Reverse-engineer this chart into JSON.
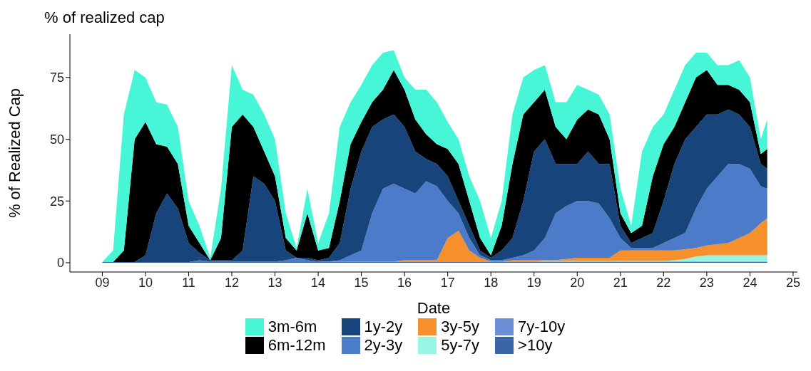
{
  "chart_data": {
    "type": "area",
    "stacked": true,
    "title": "% of realized cap",
    "xlabel": "Date",
    "ylabel": "% of Realized Cap",
    "legend": "bottom",
    "grid": false,
    "x": [
      2009,
      2009.25,
      2009.5,
      2009.75,
      2010,
      2010.25,
      2010.5,
      2010.75,
      2011,
      2011.25,
      2011.5,
      2011.75,
      2012,
      2012.25,
      2012.5,
      2012.75,
      2013,
      2013.25,
      2013.5,
      2013.75,
      2014,
      2014.25,
      2014.5,
      2014.75,
      2015,
      2015.25,
      2015.5,
      2015.75,
      2016,
      2016.25,
      2016.5,
      2016.75,
      2017,
      2017.25,
      2017.5,
      2017.75,
      2018,
      2018.25,
      2018.5,
      2018.75,
      2019,
      2019.25,
      2019.5,
      2019.75,
      2020,
      2020.25,
      2020.5,
      2020.75,
      2021,
      2021.25,
      2021.5,
      2021.75,
      2022,
      2022.25,
      2022.5,
      2022.75,
      2023,
      2023.25,
      2023.5,
      2023.75,
      2024,
      2024.25,
      2024.4
    ],
    "xlim": [
      2008.25,
      2025.1
    ],
    "xticks": [
      {
        "value": 2009,
        "label": "09"
      },
      {
        "value": 2010,
        "label": "10"
      },
      {
        "value": 2011,
        "label": "11"
      },
      {
        "value": 2012,
        "label": "12"
      },
      {
        "value": 2013,
        "label": "13"
      },
      {
        "value": 2014,
        "label": "14"
      },
      {
        "value": 2015,
        "label": "15"
      },
      {
        "value": 2016,
        "label": "16"
      },
      {
        "value": 2017,
        "label": "17"
      },
      {
        "value": 2018,
        "label": "18"
      },
      {
        "value": 2019,
        "label": "19"
      },
      {
        "value": 2020,
        "label": "20"
      },
      {
        "value": 2021,
        "label": "21"
      },
      {
        "value": 2022,
        "label": "22"
      },
      {
        "value": 2023,
        "label": "23"
      },
      {
        "value": 2024,
        "label": "24"
      },
      {
        "value": 2025,
        "label": "25"
      }
    ],
    "ylim": [
      -3.75,
      92.5
    ],
    "yticks": [
      0,
      25,
      50,
      75
    ],
    "series": [
      {
        "name": ">10y",
        "color": "#3a66a8",
        "values": [
          0.3,
          0.3,
          0.3,
          0.3,
          0.3,
          0.3,
          0.3,
          0.3,
          0.3,
          0.3,
          0.3,
          0.3,
          0.3,
          0.3,
          0.3,
          0.3,
          0.3,
          0.3,
          0.3,
          0.3,
          0.3,
          0.3,
          0.3,
          0.3,
          0.3,
          0.3,
          0.3,
          0.3,
          0.3,
          0.3,
          0.3,
          0.3,
          0.3,
          0.3,
          0.3,
          0.3,
          0.3,
          0.3,
          0.3,
          0.3,
          0.3,
          0.3,
          0.3,
          0.3,
          0.3,
          0.3,
          0.3,
          0.3,
          0.3,
          0.3,
          0.3,
          0.3,
          0.3,
          0.3,
          0.3,
          0.3,
          0.3,
          0.3,
          0.3,
          0.3,
          0.3,
          0.3,
          0.3
        ]
      },
      {
        "name": "7y-10y",
        "color": "#6a8fd6",
        "values": [
          0,
          0,
          0,
          0,
          0,
          0,
          0,
          0,
          0,
          0,
          0,
          0,
          0,
          0,
          0,
          0,
          0,
          0,
          0,
          0,
          0,
          0.2,
          0.2,
          0.2,
          0.2,
          0.2,
          0.2,
          0.2,
          0.2,
          0.2,
          0.2,
          0.2,
          0.2,
          0.2,
          0.2,
          0.2,
          0.2,
          0.2,
          0.2,
          0.2,
          0.2,
          0.2,
          0.2,
          0.2,
          0.2,
          0.2,
          0.2,
          0.2,
          0.2,
          0.2,
          0.2,
          0.2,
          0.2,
          0.2,
          0.2,
          0.2,
          0.2,
          0.2,
          0.2,
          0.2,
          0.2,
          0.2,
          0.2
        ]
      },
      {
        "name": "5y-7y",
        "color": "#99f5e3",
        "values": [
          0,
          0,
          0,
          0,
          0,
          0,
          0,
          0,
          0,
          0,
          0,
          0,
          0,
          0,
          0,
          0,
          0,
          0,
          0,
          0,
          0,
          0,
          0,
          0,
          0,
          0,
          0,
          0,
          0,
          0,
          0,
          0,
          0,
          0,
          0,
          0,
          0,
          0,
          0,
          0,
          0,
          0.2,
          0.2,
          0.2,
          0.2,
          0.2,
          0.2,
          0.2,
          0.2,
          0.2,
          0.2,
          0.2,
          0.2,
          0.5,
          1,
          2,
          2.5,
          2.5,
          2.5,
          2.5,
          2.5,
          2.5,
          2.5
        ]
      },
      {
        "name": "3y-5y",
        "color": "#f5902d",
        "values": [
          0,
          0,
          0,
          0,
          0,
          0,
          0,
          0,
          0,
          0,
          0,
          0,
          0,
          0,
          0,
          0,
          0,
          0,
          0,
          0,
          0,
          0,
          0,
          0,
          0,
          0,
          0,
          0,
          0.5,
          0.5,
          0.5,
          0.5,
          9.5,
          12.5,
          4.5,
          1.5,
          0,
          0,
          0.5,
          0.5,
          0.5,
          0.3,
          0.3,
          0.8,
          1.3,
          1.3,
          1.3,
          1.3,
          4.3,
          4.3,
          4.3,
          4.3,
          4.3,
          4,
          4,
          3.5,
          4,
          4.5,
          5,
          7,
          9,
          13,
          15
        ]
      },
      {
        "name": "2y-3y",
        "color": "#4b7bc9",
        "values": [
          0,
          0,
          0,
          0,
          0,
          0,
          0,
          0,
          0,
          0.7,
          0.2,
          0.2,
          0.2,
          0.2,
          0.2,
          0.2,
          0.2,
          0.7,
          1.7,
          0.7,
          0.2,
          0,
          0.5,
          2.5,
          4.5,
          19.5,
          29.5,
          31.5,
          29,
          27,
          32,
          30,
          15,
          7,
          5,
          1,
          0.5,
          0.5,
          1,
          2,
          4,
          9,
          19,
          21.5,
          23,
          23,
          22,
          16,
          5,
          1,
          1,
          1,
          3,
          5,
          6.5,
          16,
          23,
          27.5,
          32,
          30,
          26,
          15,
          12
        ]
      },
      {
        "name": "1y-2y",
        "color": "#17457b",
        "values": [
          0,
          0,
          0,
          0,
          2.7,
          19.7,
          27.7,
          21.7,
          7.7,
          3,
          0.5,
          0.5,
          0.5,
          4.5,
          34.5,
          31.5,
          24.5,
          4,
          0,
          1,
          0.5,
          1.5,
          7,
          27,
          40,
          35,
          28,
          28,
          25,
          17,
          9,
          9,
          10,
          5,
          5,
          2,
          1,
          4,
          8,
          22,
          40,
          40,
          20,
          17,
          15,
          20,
          16,
          22,
          5,
          2,
          4,
          6,
          17,
          30,
          38,
          33,
          30,
          25,
          22,
          20,
          17,
          9,
          8
        ]
      },
      {
        "name": "6m-12m",
        "color": "#000000",
        "values": [
          0,
          0,
          4.7,
          49.7,
          54,
          28,
          19,
          18,
          7,
          4,
          0,
          9,
          54,
          55,
          20,
          13,
          10,
          5,
          3,
          18,
          4,
          4,
          17,
          18,
          12,
          10,
          12,
          18,
          15,
          13,
          10,
          8,
          11,
          15,
          10,
          5,
          1,
          10,
          30,
          35,
          20,
          20,
          15,
          10,
          18,
          17,
          20,
          10,
          5,
          4,
          5,
          23,
          23,
          15,
          15,
          20,
          18,
          12,
          10,
          10,
          10,
          4,
          8
        ]
      },
      {
        "name": "3m-6m",
        "color": "#46f6d6",
        "values": [
          0,
          4.7,
          55,
          28,
          18,
          17,
          17,
          15,
          10,
          7,
          1,
          20,
          25,
          10,
          13,
          15,
          15,
          10,
          1,
          10,
          3,
          14,
          30,
          17,
          15,
          15,
          15,
          8,
          5,
          12,
          18,
          17,
          11,
          10,
          10,
          15,
          7,
          10,
          20,
          15,
          13,
          10,
          10,
          15,
          14,
          8,
          8,
          10,
          10,
          3,
          30,
          20,
          12,
          15,
          15,
          10,
          7,
          8,
          8,
          12,
          10,
          6,
          12
        ]
      }
    ]
  }
}
